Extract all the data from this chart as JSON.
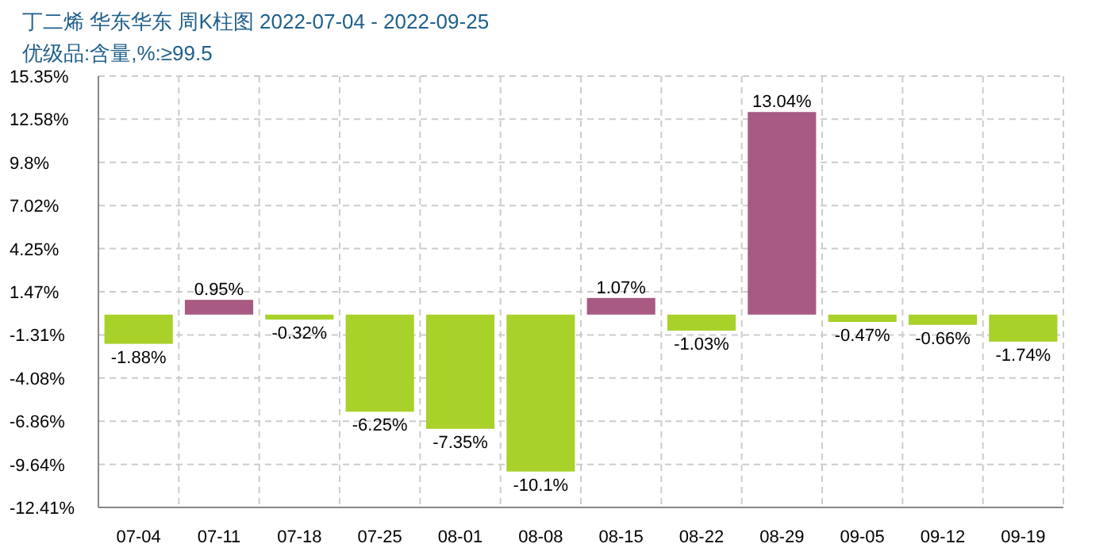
{
  "chart_data": {
    "type": "bar",
    "title": "丁二烯 华东华东 周K柱图 2022-07-04 - 2022-09-25",
    "subtitle": "优级品:含量,%:≥99.5",
    "categories": [
      "07-04",
      "07-11",
      "07-18",
      "07-25",
      "08-01",
      "08-08",
      "08-15",
      "08-22",
      "08-29",
      "09-05",
      "09-12",
      "09-19"
    ],
    "values": [
      -1.88,
      0.95,
      -0.32,
      -6.25,
      -7.35,
      -10.1,
      1.07,
      -1.03,
      13.04,
      -0.47,
      -0.66,
      -1.74
    ],
    "colors": [
      "#a8d12a",
      "#a85a82",
      "#a8d12a",
      "#a8d12a",
      "#a8d12a",
      "#a8d12a",
      "#a85a82",
      "#a8d12a",
      "#a85a82",
      "#a8d12a",
      "#a8d12a",
      "#a8d12a"
    ],
    "value_labels": [
      "-1.88%",
      "0.95%",
      "-0.32%",
      "-6.25%",
      "-7.35%",
      "-10.1%",
      "1.07%",
      "-1.03%",
      "13.04%",
      "-0.47%",
      "-0.66%",
      "-1.74%"
    ],
    "ylim": [
      -12.41,
      15.35
    ],
    "yticks": [
      {
        "value": 15.35,
        "label": "15.35%"
      },
      {
        "value": 12.58,
        "label": "12.58%"
      },
      {
        "value": 9.8,
        "label": "9.8%"
      },
      {
        "value": 7.02,
        "label": "7.02%"
      },
      {
        "value": 4.25,
        "label": "4.25%"
      },
      {
        "value": 1.47,
        "label": "1.47%"
      },
      {
        "value": -1.31,
        "label": "-1.31%"
      },
      {
        "value": -4.08,
        "label": "-4.08%"
      },
      {
        "value": -6.86,
        "label": "-6.86%"
      },
      {
        "value": -9.64,
        "label": "-9.64%"
      },
      {
        "value": -12.41,
        "label": "-12.41%"
      }
    ],
    "grid": true
  }
}
